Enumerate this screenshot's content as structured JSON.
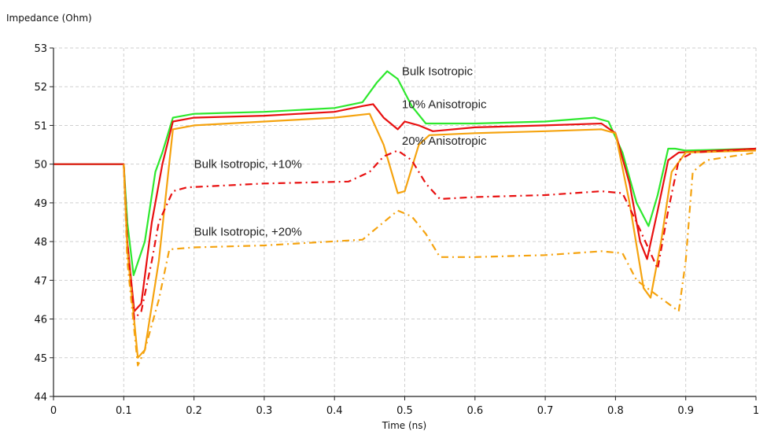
{
  "chart_data": {
    "type": "line",
    "title": "",
    "xlabel": "Time (ns)",
    "ylabel": "Impedance (Ohm)",
    "xlim": [
      0,
      1
    ],
    "ylim": [
      44,
      53
    ],
    "xticks": [
      "0",
      "0.1",
      "0.2",
      "0.3",
      "0.4",
      "0.5",
      "0.6",
      "0.7",
      "0.8",
      "0.9",
      "1"
    ],
    "yticks": [
      "44",
      "45",
      "46",
      "47",
      "48",
      "49",
      "50",
      "51",
      "52",
      "53"
    ],
    "grid": true,
    "series": [
      {
        "name": "Bulk Isotropic",
        "color": "#2ee82e",
        "dash": false,
        "x": [
          0,
          0.1,
          0.105,
          0.114,
          0.13,
          0.145,
          0.155,
          0.17,
          0.2,
          0.3,
          0.4,
          0.44,
          0.46,
          0.475,
          0.49,
          0.51,
          0.53,
          0.6,
          0.7,
          0.77,
          0.79,
          0.81,
          0.83,
          0.847,
          0.86,
          0.875,
          0.885,
          0.9,
          1
        ],
        "y": [
          50,
          50,
          48.5,
          47.13,
          48,
          49.8,
          50.3,
          51.2,
          51.3,
          51.35,
          51.45,
          51.6,
          52.1,
          52.4,
          52.2,
          51.5,
          51.05,
          51.05,
          51.1,
          51.2,
          51.1,
          50.3,
          49,
          48.4,
          49.2,
          50.4,
          50.4,
          50.35,
          50.4
        ]
      },
      {
        "name": "10% Anisotropic",
        "color": "#e81010",
        "dash": false,
        "x": [
          0,
          0.1,
          0.105,
          0.115,
          0.125,
          0.14,
          0.155,
          0.17,
          0.2,
          0.3,
          0.4,
          0.44,
          0.455,
          0.47,
          0.49,
          0.5,
          0.52,
          0.54,
          0.6,
          0.7,
          0.78,
          0.8,
          0.82,
          0.835,
          0.845,
          0.86,
          0.875,
          0.89,
          1
        ],
        "y": [
          50,
          50,
          48,
          46.2,
          46.4,
          48.5,
          50,
          51.1,
          51.2,
          51.25,
          51.35,
          51.5,
          51.55,
          51.2,
          50.9,
          51.1,
          51.0,
          50.85,
          50.95,
          51.0,
          51.05,
          50.8,
          49.5,
          48,
          47.55,
          48.8,
          50.1,
          50.3,
          50.4
        ]
      },
      {
        "name": "20% Anisotropic",
        "color": "#f5a30f",
        "dash": false,
        "x": [
          0.1,
          0.105,
          0.12,
          0.13,
          0.15,
          0.17,
          0.2,
          0.3,
          0.4,
          0.45,
          0.47,
          0.49,
          0.5,
          0.52,
          0.535,
          0.6,
          0.7,
          0.78,
          0.8,
          0.82,
          0.84,
          0.85,
          0.865,
          0.88,
          0.9,
          1
        ],
        "y": [
          50,
          47.8,
          45,
          45.2,
          47.5,
          50.9,
          51.0,
          51.1,
          51.2,
          51.3,
          50.5,
          49.25,
          49.3,
          50.5,
          50.75,
          50.8,
          50.85,
          50.9,
          50.8,
          49,
          46.8,
          46.55,
          48,
          49.8,
          50.3,
          50.35
        ]
      },
      {
        "name": "Bulk Isotropic, +10%",
        "color": "#e81010",
        "dash": true,
        "x": [
          0.1,
          0.105,
          0.115,
          0.125,
          0.14,
          0.15,
          0.17,
          0.19,
          0.3,
          0.42,
          0.45,
          0.47,
          0.49,
          0.51,
          0.53,
          0.55,
          0.6,
          0.7,
          0.78,
          0.81,
          0.83,
          0.86,
          0.875,
          0.89,
          0.91,
          1
        ],
        "y": [
          50,
          48,
          46,
          46.2,
          47.5,
          48.5,
          49.3,
          49.4,
          49.5,
          49.55,
          49.8,
          50.2,
          50.35,
          50.1,
          49.5,
          49.1,
          49.15,
          49.2,
          49.3,
          49.25,
          48.5,
          47.3,
          48.8,
          50.1,
          50.3,
          50.4
        ]
      },
      {
        "name": "Bulk Isotropic, +20%",
        "color": "#f5a30f",
        "dash": true,
        "x": [
          0.1,
          0.105,
          0.12,
          0.13,
          0.15,
          0.165,
          0.2,
          0.3,
          0.44,
          0.47,
          0.49,
          0.51,
          0.53,
          0.55,
          0.6,
          0.7,
          0.78,
          0.81,
          0.83,
          0.86,
          0.89,
          0.9,
          0.91,
          0.93,
          1
        ],
        "y": [
          50,
          47.5,
          44.8,
          45.2,
          46.5,
          47.8,
          47.85,
          47.9,
          48.05,
          48.5,
          48.8,
          48.65,
          48.2,
          47.6,
          47.6,
          47.65,
          47.75,
          47.7,
          47.0,
          46.6,
          46.2,
          47.5,
          49.8,
          50.1,
          50.3
        ]
      }
    ],
    "annotations": [
      {
        "text": "Bulk Isotropic",
        "x": 0.496,
        "y": 52.3
      },
      {
        "text": "10% Anisotropic",
        "x": 0.496,
        "y": 51.45
      },
      {
        "text": "20% Anisotropic",
        "x": 0.496,
        "y": 50.5
      },
      {
        "text": "Bulk Isotropic, +10%",
        "x": 0.2,
        "y": 49.9
      },
      {
        "text": "Bulk Isotropic, +20%",
        "x": 0.2,
        "y": 48.15
      }
    ]
  }
}
